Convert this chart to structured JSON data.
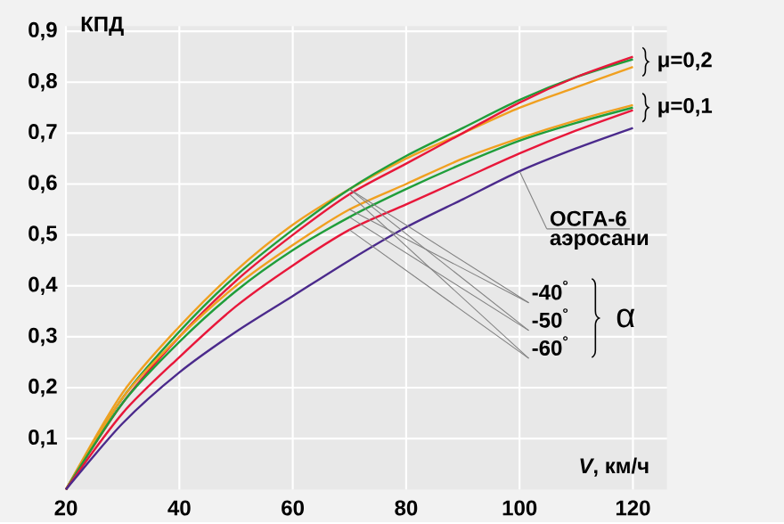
{
  "chart_data": {
    "type": "line",
    "xlabel": "*V*, км/ч",
    "ylabel": "КПД",
    "x": [
      20,
      30,
      40,
      50,
      60,
      70,
      80,
      90,
      100,
      110,
      120
    ],
    "series": [
      {
        "color": "#f0a020",
        "values": [
          0,
          0.19,
          0.32,
          0.43,
          0.52,
          0.59,
          0.65,
          0.7,
          0.75,
          0.79,
          0.83
        ]
      },
      {
        "color": "#1f9e3a",
        "values": [
          0,
          0.18,
          0.31,
          0.42,
          0.51,
          0.59,
          0.655,
          0.71,
          0.765,
          0.81,
          0.845
        ]
      },
      {
        "color": "#e8173a",
        "values": [
          0,
          0.17,
          0.3,
          0.41,
          0.5,
          0.58,
          0.64,
          0.7,
          0.76,
          0.81,
          0.85
        ]
      },
      {
        "color": "#f0a020",
        "values": [
          0,
          0.18,
          0.3,
          0.4,
          0.48,
          0.55,
          0.6,
          0.65,
          0.69,
          0.725,
          0.755
        ]
      },
      {
        "color": "#1f9e3a",
        "values": [
          0,
          0.17,
          0.29,
          0.39,
          0.47,
          0.535,
          0.59,
          0.64,
          0.685,
          0.72,
          0.75
        ]
      },
      {
        "color": "#e8173a",
        "values": [
          0,
          0.15,
          0.26,
          0.36,
          0.44,
          0.51,
          0.56,
          0.61,
          0.66,
          0.705,
          0.745
        ]
      },
      {
        "color": "#4b2a8c",
        "values": [
          0,
          0.13,
          0.23,
          0.31,
          0.38,
          0.45,
          0.515,
          0.57,
          0.625,
          0.67,
          0.71
        ]
      }
    ],
    "xlim": [
      20,
      126
    ],
    "ylim": [
      0,
      0.91
    ],
    "xticks": [
      20,
      40,
      60,
      80,
      100,
      120
    ],
    "yticks": [
      {
        "value": 0.1,
        "label": "0,1"
      },
      {
        "value": 0.2,
        "label": "0,2"
      },
      {
        "value": 0.3,
        "label": "0,3"
      },
      {
        "value": 0.4,
        "label": "0,4"
      },
      {
        "value": 0.5,
        "label": "0,5"
      },
      {
        "value": 0.6,
        "label": "0,6"
      },
      {
        "value": 0.7,
        "label": "0,7"
      },
      {
        "value": 0.8,
        "label": "0,8"
      },
      {
        "value": 0.9,
        "label": "0,9"
      }
    ],
    "grid": true,
    "marker": "none",
    "line_style": "solid",
    "annotations": [
      {
        "text": "μ=0,2",
        "x": 120,
        "y": 0.84
      },
      {
        "text": "μ=0,1",
        "x": 120,
        "y": 0.75
      },
      {
        "text": "ОСГА-6",
        "x": 100,
        "y": 0.625
      },
      "аэросани",
      {
        "text": "-40$^{°}$",
        "x": 70,
        "y": 0.59
      },
      {
        "text": "-50$^{°}$",
        "x": 70,
        "y": 0.59
      },
      {
        "text": "-60$^{°}$",
        "x": 70,
        "y": 0.58
      },
      "α"
    ]
  }
}
